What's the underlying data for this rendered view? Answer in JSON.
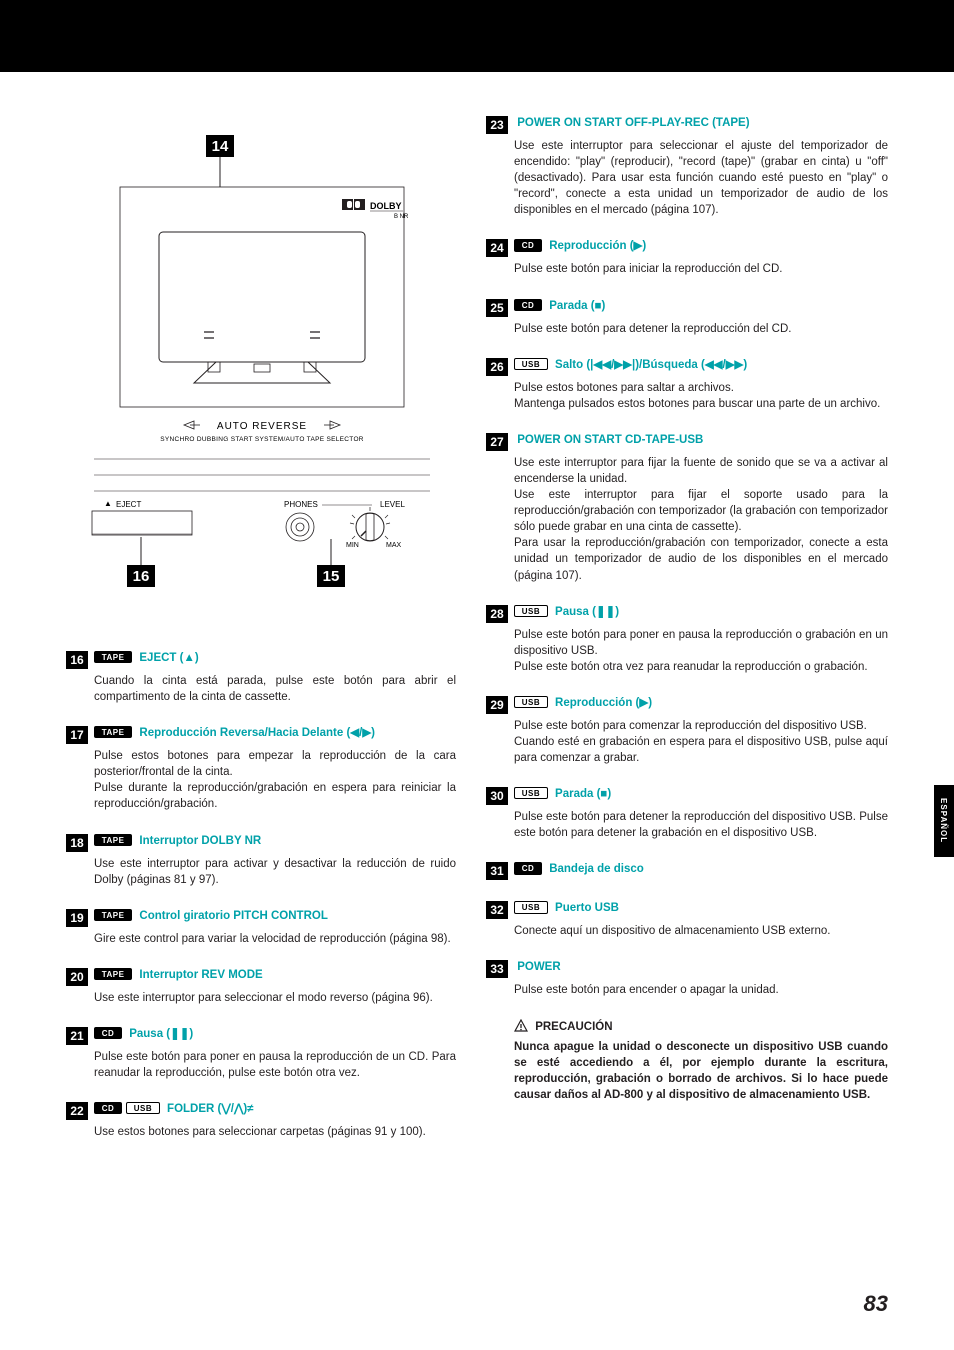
{
  "diagram": {
    "label14": "14",
    "label15": "15",
    "label16": "16",
    "dolby": "DOLBY",
    "dolby_sub": "B NR",
    "autorev": "AUTO REVERSE",
    "autorev_sub": "SYNCHRO DUBBING START SYSTEM/AUTO TAPE SELECTOR",
    "eject": "EJECT",
    "phones": "PHONES",
    "level": "LEVEL",
    "min": "MIN",
    "max": "MAX"
  },
  "left": [
    {
      "num": "16",
      "badges": [
        "TAPE"
      ],
      "title": "EJECT (▲)",
      "body": [
        "Cuando la cinta está parada, pulse este botón para abrir el compartimento de la cinta de cassette."
      ]
    },
    {
      "num": "17",
      "badges": [
        "TAPE"
      ],
      "title": "Reproducción Reversa/Hacia Delante (◀/▶)",
      "body": [
        "Pulse estos botones para empezar la reproducción de la cara posterior/frontal de la cinta.",
        "Pulse durante la reproducción/grabación en espera para reiniciar la reproducción/grabación."
      ]
    },
    {
      "num": "18",
      "badges": [
        "TAPE"
      ],
      "title": "Interruptor DOLBY NR",
      "body": [
        "Use este interruptor para activar y desactivar la reducción de ruido Dolby (páginas 81 y 97)."
      ]
    },
    {
      "num": "19",
      "badges": [
        "TAPE"
      ],
      "title": "Control giratorio PITCH CONTROL",
      "body": [
        "Gire este control para variar la velocidad de reproducción (página 98)."
      ]
    },
    {
      "num": "20",
      "badges": [
        "TAPE"
      ],
      "title": "Interruptor REV MODE",
      "body": [
        "Use este interruptor para seleccionar el modo reverso (página 96)."
      ]
    },
    {
      "num": "21",
      "badges": [
        "CD"
      ],
      "title": "Pausa (❚❚)",
      "body": [
        "Pulse este botón para poner en pausa la reproducción de un CD. Para reanudar la reproducción, pulse este botón otra vez."
      ]
    },
    {
      "num": "22",
      "badges": [
        "CD",
        "USB"
      ],
      "title": "FOLDER (⋁/⋀)≠",
      "body": [
        "Use estos botones para seleccionar carpetas (páginas 91 y 100)."
      ]
    }
  ],
  "right": [
    {
      "num": "23",
      "badges": [],
      "title": "POWER ON START OFF-PLAY-REC (TAPE)",
      "body": [
        "Use este interruptor para seleccionar el ajuste del temporizador de encendido: \"play\" (reproducir), \"record (tape)\" (grabar en cinta) u \"off\" (desactivado). Para usar esta función cuando esté puesto en \"play\" o \"record\", conecte a esta unidad un temporizador de audio de los disponibles en el mercado (página 107)."
      ]
    },
    {
      "num": "24",
      "badges": [
        "CD"
      ],
      "title": "Reproducción (▶)",
      "body": [
        "Pulse este botón para iniciar la reproducción del CD."
      ]
    },
    {
      "num": "25",
      "badges": [
        "CD"
      ],
      "title": "Parada (■)",
      "body": [
        "Pulse este botón para detener la reproducción del CD."
      ]
    },
    {
      "num": "26",
      "badges": [
        "USB"
      ],
      "title": "Salto (|◀◀/▶▶|)/Búsqueda (◀◀/▶▶)",
      "body": [
        "Pulse estos botones para saltar a archivos.",
        "Mantenga pulsados estos botones para buscar una parte de un archivo."
      ]
    },
    {
      "num": "27",
      "badges": [],
      "title": "POWER ON START CD-TAPE-USB",
      "body": [
        "Use este interruptor para fijar la fuente de sonido que se va a activar al encenderse la unidad.",
        "Use este interruptor para fijar el soporte usado para la reproducción/grabación con temporizador (la grabación con temporizador sólo puede grabar en una cinta de cassette).",
        "Para usar la reproducción/grabación con temporizador, conecte a esta unidad un temporizador de audio de los disponibles en el mercado (página 107)."
      ]
    },
    {
      "num": "28",
      "badges": [
        "USB"
      ],
      "title": "Pausa (❚❚)",
      "body": [
        "Pulse este botón para poner en pausa la reproducción o grabación en un dispositivo USB.",
        "Pulse este botón otra vez para reanudar la reproducción o grabación."
      ]
    },
    {
      "num": "29",
      "badges": [
        "USB"
      ],
      "title": "Reproducción (▶)",
      "body": [
        "Pulse este botón para comenzar la reproducción del dispositivo USB.",
        "Cuando esté en grabación en espera para el dispositivo USB, pulse aquí para comenzar a grabar."
      ]
    },
    {
      "num": "30",
      "badges": [
        "USB"
      ],
      "title": "Parada (■)",
      "body": [
        "Pulse este botón para detener la reproducción del dispositivo USB. Pulse este botón para detener la grabación en el dispositivo USB."
      ]
    },
    {
      "num": "31",
      "badges": [
        "CD"
      ],
      "title": "Bandeja de disco",
      "body": []
    },
    {
      "num": "32",
      "badges": [
        "USB"
      ],
      "title": "Puerto USB",
      "body": [
        "Conecte aquí un dispositivo de almacenamiento USB externo."
      ]
    },
    {
      "num": "33",
      "badges": [],
      "title": "POWER",
      "body": [
        "Pulse este botón para encender o apagar la unidad."
      ]
    }
  ],
  "caution": {
    "head": "PRECAUCIÓN",
    "body": "Nunca apague la unidad o desconecte un dispositivo USB cuando se esté accediendo a él, por ejemplo durante la escritura, reproducción, grabación o borrado de archivos. Si lo hace puede causar daños al AD-800 y al dispositivo de almacenamiento USB."
  },
  "side_tab": "ESPAÑOL",
  "page_num": "83"
}
